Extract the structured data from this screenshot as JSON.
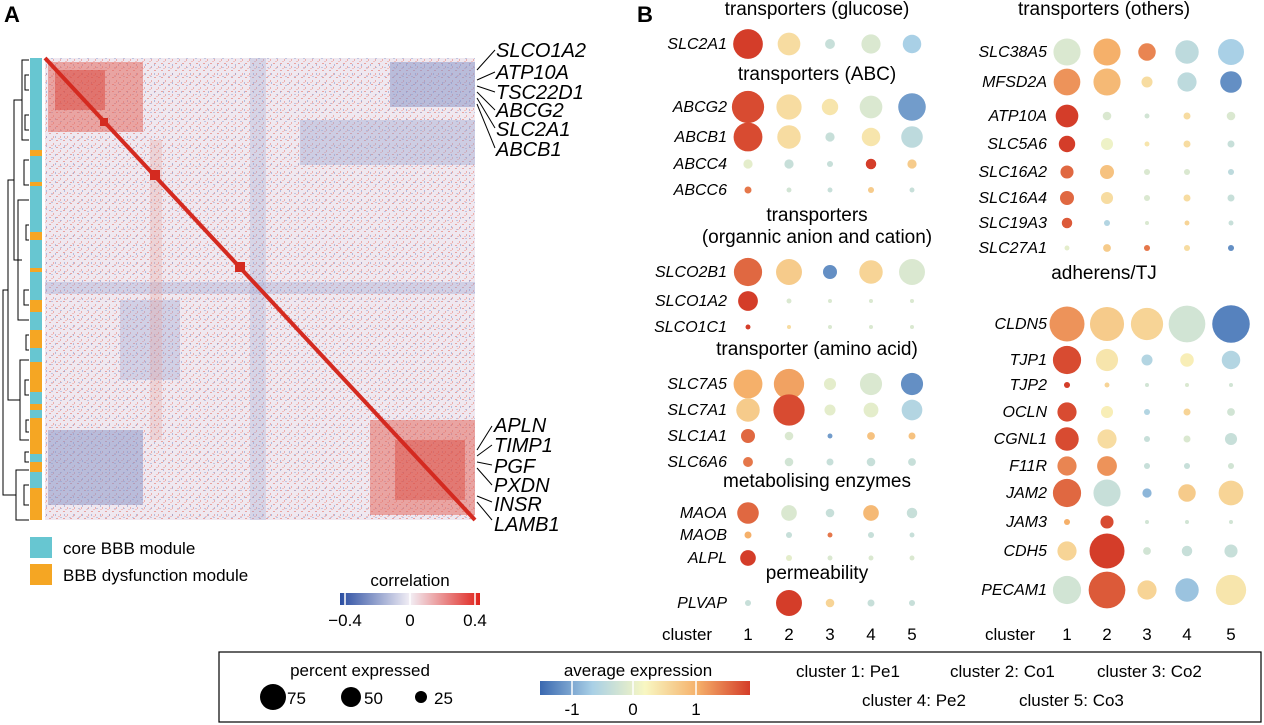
{
  "panel_a": {
    "label": "A",
    "genes_top": [
      "SLCO1A2",
      "ATP10A",
      "TSC22D1",
      "ABCG2",
      "SLC2A1",
      "ABCB1"
    ],
    "genes_bottom": [
      "APLN",
      "TIMP1",
      "PGF",
      "PXDN",
      "INSR",
      "LAMB1"
    ],
    "module_legend": [
      {
        "label": "core BBB module",
        "color": "#67c6d1"
      },
      {
        "label": "BBB dysfunction module",
        "color": "#f5a623"
      }
    ],
    "colorbar": {
      "title": "correlation",
      "ticks": [
        "−0.4",
        "0",
        "0.4"
      ],
      "low": "#2b4ea2",
      "mid": "#f2eef5",
      "high": "#e0231c"
    }
  },
  "panel_b": {
    "label": "B",
    "cluster_axis_label": "cluster",
    "clusters": [
      "1",
      "2",
      "3",
      "4",
      "5"
    ],
    "legend": {
      "size_title": "percent expressed",
      "size_ticks": [
        "75",
        "50",
        "25"
      ],
      "color_title": "average expression",
      "color_ticks": [
        "-1",
        "0",
        "1"
      ],
      "cluster_key": [
        "cluster 1: Pe1",
        "cluster 2: Co1",
        "cluster 3: Co2",
        "cluster 4: Pe2",
        "cluster 5: Co3"
      ]
    }
  },
  "chart_data": [
    {
      "type": "heatmap",
      "title": "",
      "colorbar_label": "correlation",
      "color_range": [
        -0.4,
        0.4
      ],
      "highlighted_genes": [
        "SLCO1A2",
        "ATP10A",
        "TSC22D1",
        "ABCG2",
        "SLC2A1",
        "ABCB1",
        "APLN",
        "TIMP1",
        "PGF",
        "PXDN",
        "INSR",
        "LAMB1"
      ],
      "modules": [
        "core BBB module",
        "BBB dysfunction module"
      ]
    },
    {
      "type": "scatter",
      "subtype": "dotplot",
      "xlabel": "cluster",
      "x": [
        "1",
        "2",
        "3",
        "4",
        "5"
      ],
      "size_metric": "percent expressed",
      "color_metric": "average expression",
      "color_range": [
        -1.6,
        1.6
      ],
      "groups": [
        {
          "name": "transporters (glucose)",
          "column": 1,
          "genes": [
            {
              "gene": "SLC2A1",
              "pct": [
                72,
                42,
                8,
                30,
                28
              ],
              "avg": [
                1.6,
                0.3,
                -0.5,
                -0.3,
                -0.8
              ]
            }
          ]
        },
        {
          "name": "transporters (ABC)",
          "column": 1,
          "genes": [
            {
              "gene": "ABCG2",
              "pct": [
                85,
                52,
                22,
                42,
                62
              ],
              "avg": [
                1.5,
                0.3,
                0.2,
                -0.3,
                -1.2
              ]
            },
            {
              "gene": "ABCB1",
              "pct": [
                68,
                45,
                7,
                28,
                38
              ],
              "avg": [
                1.5,
                0.3,
                -0.5,
                0.2,
                -0.6
              ]
            },
            {
              "gene": "ABCC4",
              "pct": [
                7,
                7,
                3,
                9,
                7
              ],
              "avg": [
                -0.2,
                -0.5,
                -0.5,
                1.6,
                0.5
              ]
            },
            {
              "gene": "ABCC6",
              "pct": [
                4,
                2,
                2,
                3,
                2
              ],
              "avg": [
                1.2,
                -0.4,
                -0.5,
                0.5,
                -0.5
              ]
            }
          ]
        },
        {
          "name": "transporters (organnic anion and cation)",
          "column": 1,
          "genes": [
            {
              "gene": "SLCO2B1",
              "pct": [
                65,
                55,
                16,
                45,
                55
              ],
              "avg": [
                1.3,
                0.5,
                -1.3,
                0.4,
                -0.3
              ]
            },
            {
              "gene": "SLCO1A2",
              "pct": [
                32,
                2,
                1,
                1,
                1
              ],
              "avg": [
                1.6,
                -0.3,
                -0.3,
                -0.3,
                -0.3
              ]
            },
            {
              "gene": "SLCO1C1",
              "pct": [
                2,
                1,
                0.5,
                0.5,
                0.5
              ],
              "avg": [
                1.6,
                0.3,
                -0.3,
                -0.3,
                -0.3
              ]
            }
          ]
        },
        {
          "name": "transporter (amino acid)",
          "column": 1,
          "genes": [
            {
              "gene": "SLC7A5",
              "pct": [
                68,
                75,
                12,
                40,
                40
              ],
              "avg": [
                0.8,
                0.9,
                -0.2,
                -0.3,
                -1.3
              ]
            },
            {
              "gene": "SLC7A1",
              "pct": [
                45,
                80,
                10,
                18,
                35
              ],
              "avg": [
                0.5,
                1.5,
                -0.2,
                -0.2,
                -0.7
              ]
            },
            {
              "gene": "SLC1A1",
              "pct": [
                16,
                6,
                2,
                5,
                4
              ],
              "avg": [
                1.3,
                -0.3,
                -1.2,
                0.6,
                0.6
              ]
            },
            {
              "gene": "SLC6A6",
              "pct": [
                8,
                6,
                4,
                6,
                5
              ],
              "avg": [
                1.2,
                -0.4,
                -0.5,
                -0.5,
                -0.5
              ]
            }
          ]
        },
        {
          "name": "metabolising enzymes",
          "column": 1,
          "genes": [
            {
              "gene": "MAOA",
              "pct": [
                38,
                20,
                6,
                20,
                9
              ],
              "avg": [
                1.3,
                -0.3,
                -0.5,
                0.7,
                -0.5
              ]
            },
            {
              "gene": "MAOB",
              "pct": [
                4,
                3,
                2,
                3,
                2
              ],
              "avg": [
                0.8,
                -0.5,
                1.2,
                -0.5,
                -0.5
              ]
            },
            {
              "gene": "ALPL",
              "pct": [
                20,
                3,
                2,
                2,
                2
              ],
              "avg": [
                1.6,
                -0.2,
                -0.3,
                -0.3,
                -0.3
              ]
            }
          ]
        },
        {
          "name": "permeability",
          "column": 1,
          "genes": [
            {
              "gene": "PLVAP",
              "pct": [
                3,
                55,
                6,
                4,
                3
              ],
              "avg": [
                -0.5,
                1.6,
                0.4,
                -0.5,
                -0.5
              ]
            }
          ]
        },
        {
          "name": "transporters (others)",
          "column": 2,
          "genes": [
            {
              "gene": "SLC38A5",
              "pct": [
                60,
                60,
                25,
                45,
                55
              ],
              "avg": [
                -0.3,
                0.8,
                1.1,
                -0.6,
                -0.8
              ]
            },
            {
              "gene": "MFSD2A",
              "pct": [
                58,
                60,
                10,
                30,
                38
              ],
              "avg": [
                1.0,
                0.7,
                0.3,
                -0.6,
                -1.3
              ]
            },
            {
              "gene": "ATP10A",
              "pct": [
                42,
                6,
                2,
                4,
                6
              ],
              "avg": [
                1.6,
                -0.3,
                -0.4,
                0.3,
                -0.3
              ]
            },
            {
              "gene": "SLC5A6",
              "pct": [
                22,
                12,
                2,
                4,
                4
              ],
              "avg": [
                1.6,
                -0.1,
                0.2,
                0.3,
                -0.5
              ]
            },
            {
              "gene": "SLC16A2",
              "pct": [
                14,
                16,
                3,
                3,
                3
              ],
              "avg": [
                1.3,
                0.6,
                -0.3,
                -0.3,
                -0.6
              ]
            },
            {
              "gene": "SLC16A4",
              "pct": [
                16,
                12,
                3,
                4,
                4
              ],
              "avg": [
                1.3,
                0.3,
                -0.3,
                0.3,
                -0.5
              ]
            },
            {
              "gene": "SLC19A3",
              "pct": [
                9,
                3,
                1,
                2,
                2
              ],
              "avg": [
                1.4,
                -0.7,
                -0.3,
                0.4,
                -0.5
              ]
            },
            {
              "gene": "SLC27A1",
              "pct": [
                2,
                5,
                3,
                3,
                3
              ],
              "avg": [
                -0.2,
                0.5,
                1.2,
                0.3,
                -1.3
              ]
            }
          ]
        },
        {
          "name": "adherens/TJ",
          "column": 2,
          "genes": [
            {
              "gene": "CLDN5",
              "pct": [
                100,
                95,
                85,
                110,
                115
              ],
              "avg": [
                1.0,
                0.5,
                0.4,
                -0.4,
                -1.4
              ]
            },
            {
              "gene": "TJP1",
              "pct": [
                65,
                40,
                10,
                15,
                28
              ],
              "avg": [
                1.5,
                0.2,
                -0.7,
                0.1,
                -0.7
              ]
            },
            {
              "gene": "TJP2",
              "pct": [
                3,
                2,
                1,
                1,
                1
              ],
              "avg": [
                1.6,
                0.4,
                -0.4,
                -0.3,
                -0.4
              ]
            },
            {
              "gene": "OCLN",
              "pct": [
                30,
                12,
                3,
                4,
                5
              ],
              "avg": [
                1.5,
                0.1,
                -0.7,
                0.4,
                -0.4
              ]
            },
            {
              "gene": "CGNL1",
              "pct": [
                45,
                30,
                3,
                4,
                12
              ],
              "avg": [
                1.5,
                0.3,
                -0.5,
                -0.3,
                -0.5
              ]
            },
            {
              "gene": "F11R",
              "pct": [
                30,
                32,
                3,
                3,
                3
              ],
              "avg": [
                1.1,
                1.0,
                -0.5,
                -0.5,
                -0.4
              ]
            },
            {
              "gene": "JAM2",
              "pct": [
                65,
                60,
                7,
                25,
                50
              ],
              "avg": [
                1.3,
                -0.5,
                -1.0,
                0.5,
                0.4
              ]
            },
            {
              "gene": "JAM3",
              "pct": [
                3,
                14,
                1,
                1,
                1
              ],
              "avg": [
                0.8,
                1.5,
                -0.4,
                -0.4,
                -0.4
              ]
            },
            {
              "gene": "CDH5",
              "pct": [
                30,
                100,
                5,
                9,
                14
              ],
              "avg": [
                0.4,
                1.6,
                -0.4,
                -0.5,
                -0.5
              ]
            },
            {
              "gene": "PECAM1",
              "pct": [
                65,
                110,
                30,
                45,
                75
              ],
              "avg": [
                -0.4,
                1.4,
                0.4,
                -0.9,
                0.2
              ]
            }
          ]
        }
      ]
    }
  ]
}
